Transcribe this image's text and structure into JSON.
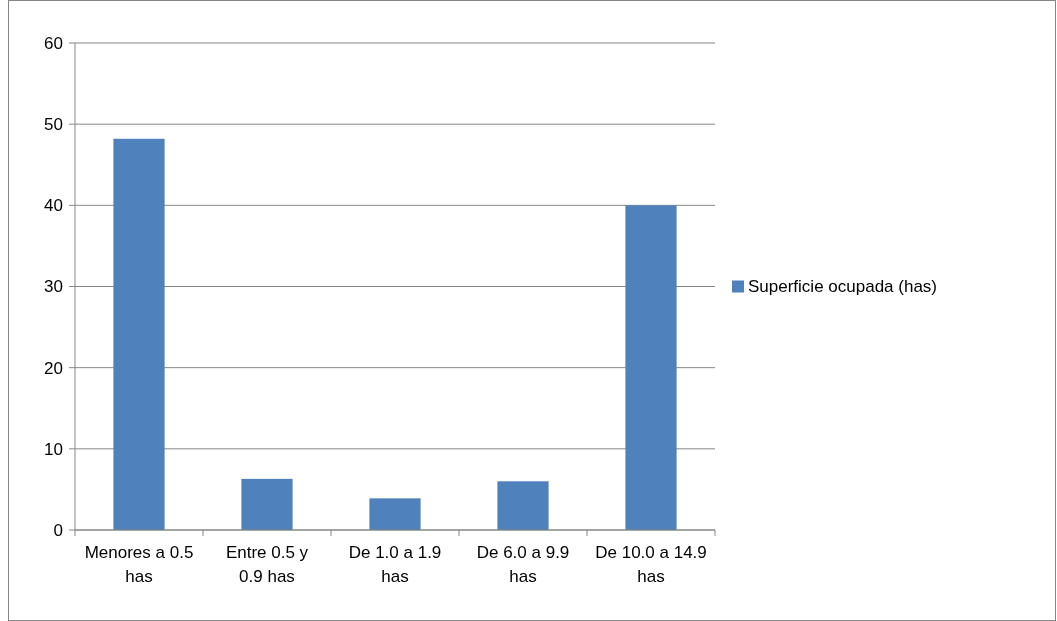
{
  "chart_data": {
    "type": "bar",
    "categories": [
      "Menores a 0.5 has",
      "Entre 0.5 y 0.9 has",
      "De 1.0 a 1.9 has",
      "De 6.0 a 9.9 has",
      "De 10.0 a 14.9 has"
    ],
    "series": [
      {
        "name": "Superficie ocupada (has)",
        "color": "#4f81bd",
        "values": [
          48.2,
          6.3,
          3.9,
          6.0,
          40.0
        ]
      }
    ],
    "ylim": [
      0,
      60
    ],
    "yticks": [
      0,
      10,
      20,
      30,
      40,
      50,
      60
    ],
    "grid": "y",
    "legend": "right"
  }
}
